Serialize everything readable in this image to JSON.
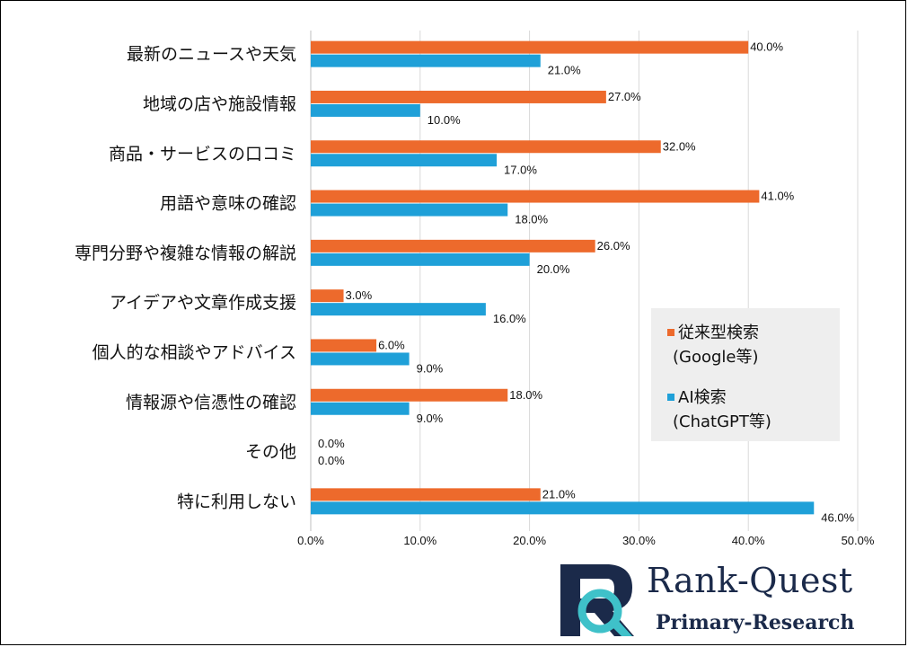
{
  "chart_data": {
    "type": "bar",
    "orientation": "horizontal",
    "categories": [
      "最新のニュースや天気",
      "地域の店や施設情報",
      "商品・サービスの口コミ",
      "用語や意味の確認",
      "専門分野や複雑な情報の解説",
      "アイデアや文章作成支援",
      "個人的な相談やアドバイス",
      "情報源や信憑性の確認",
      "その他",
      "特に利用しない"
    ],
    "series": [
      {
        "name": "従来型検索(Google等)",
        "color": "#ed6a2c",
        "values": [
          40.0,
          27.0,
          32.0,
          41.0,
          26.0,
          3.0,
          6.0,
          18.0,
          0.0,
          21.0
        ],
        "labels": [
          "40.0%",
          "27.0%",
          "32.0%",
          "41.0%",
          "26.0%",
          "3.0%",
          "6.0%",
          "18.0%",
          "0.0%",
          "21.0%"
        ]
      },
      {
        "name": "AI検索(ChatGPT等)",
        "color": "#1fa0d8",
        "values": [
          21.0,
          10.0,
          17.0,
          18.0,
          20.0,
          16.0,
          9.0,
          9.0,
          0.0,
          46.0
        ],
        "labels": [
          "21.0%",
          "10.0%",
          "17.0%",
          "18.0%",
          "20.0%",
          "16.0%",
          "9.0%",
          "9.0%",
          "0.0%",
          "46.0%"
        ]
      }
    ],
    "xlim": [
      0,
      50
    ],
    "xticks": [
      0,
      10,
      20,
      30,
      40,
      50
    ],
    "xtick_labels": [
      "0.0%",
      "10.0%",
      "20.0%",
      "30.0%",
      "40.0%",
      "50.0%"
    ],
    "grid": true,
    "legend_position": "right"
  },
  "legend": {
    "items": [
      {
        "line1": "従来型検索",
        "line2": "(Google等)",
        "color": "#ed6a2c"
      },
      {
        "line1": "AI検索",
        "line2": "(ChatGPT等)",
        "color": "#1fa0d8"
      }
    ]
  },
  "logo": {
    "name": "Rank-Quest",
    "subtitle": "Primary-Research",
    "text_color": "#1b2a4a",
    "accent_color": "#3fc1c9"
  }
}
